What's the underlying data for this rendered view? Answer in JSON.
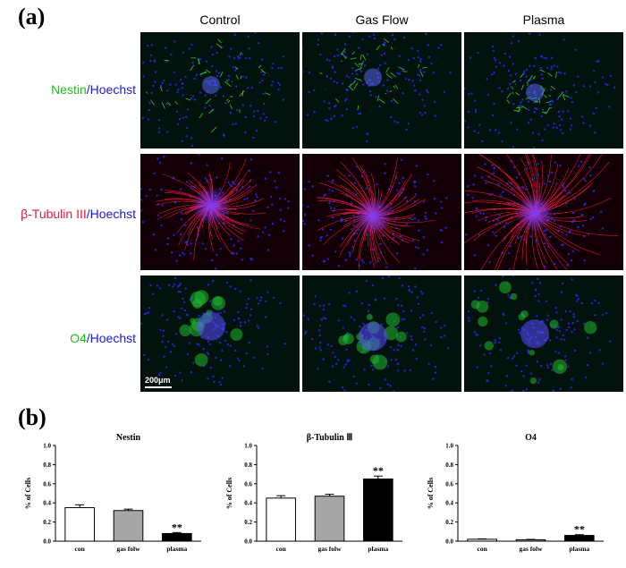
{
  "panel_a_label": "(a)",
  "panel_b_label": "(b)",
  "columns": [
    "Control",
    "Gas Flow",
    "Plasma"
  ],
  "rows": [
    {
      "marker": "Nestin",
      "separator": "/",
      "stain": "Hoechst",
      "marker_color": "#19c219",
      "stain_color": "#1a1adb"
    },
    {
      "marker": "β-Tubulin III",
      "separator": "/",
      "stain": "Hoechst",
      "marker_color": "#e8193c",
      "stain_color": "#1a1adb"
    },
    {
      "marker": "O4",
      "separator": "/",
      "stain": "Hoechst",
      "marker_color": "#19c219",
      "stain_color": "#1a1adb"
    }
  ],
  "scale_bar": "200μm",
  "chart_data": [
    {
      "type": "bar",
      "title": "Nestin",
      "ylabel": "% of Cells",
      "categories": [
        "con",
        "gas folw",
        "plasma"
      ],
      "values": [
        0.35,
        0.32,
        0.08
      ],
      "errors": [
        0.03,
        0.015,
        0.01
      ],
      "bar_colors": [
        "#ffffff",
        "#a6a6a6",
        "#000000"
      ],
      "annotations": [
        "",
        "",
        "**"
      ],
      "ylim": [
        0,
        1.0
      ],
      "yticks": [
        "0.0",
        "0.2",
        "0.4",
        "0.6",
        "0.8",
        "1.0"
      ]
    },
    {
      "type": "bar",
      "title": "β-Tubulin Ⅲ",
      "ylabel": "% of Cells",
      "categories": [
        "con",
        "gas folw",
        "plasma"
      ],
      "values": [
        0.45,
        0.47,
        0.65
      ],
      "errors": [
        0.025,
        0.02,
        0.03
      ],
      "bar_colors": [
        "#ffffff",
        "#a6a6a6",
        "#000000"
      ],
      "annotations": [
        "",
        "",
        "**"
      ],
      "ylim": [
        0,
        1.0
      ],
      "yticks": [
        "0.0",
        "0.2",
        "0.4",
        "0.6",
        "0.8",
        "1.0"
      ]
    },
    {
      "type": "bar",
      "title": "O4",
      "ylabel": "% of Cells",
      "categories": [
        "con",
        "gas folw",
        "plasma"
      ],
      "values": [
        0.02,
        0.015,
        0.06
      ],
      "errors": [
        0.004,
        0.004,
        0.008
      ],
      "bar_colors": [
        "#ffffff",
        "#a6a6a6",
        "#000000"
      ],
      "annotations": [
        "",
        "",
        "**"
      ],
      "ylim": [
        0,
        1.0
      ],
      "yticks": [
        "0.0",
        "0.2",
        "0.4",
        "0.6",
        "0.8",
        "1.0"
      ]
    }
  ]
}
